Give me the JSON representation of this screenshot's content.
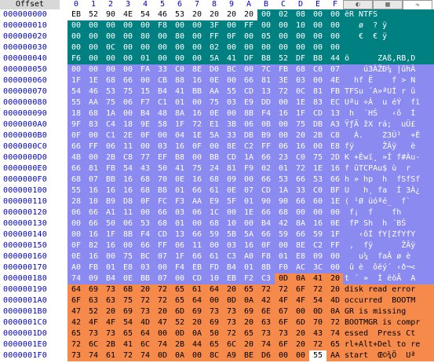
{
  "header": {
    "offset_label": "Offset",
    "columns": [
      "0",
      "1",
      "2",
      "3",
      "4",
      "5",
      "6",
      "7",
      "8",
      "9",
      "A",
      "B",
      "C",
      "D",
      "E",
      "F"
    ]
  },
  "tabs": [
    {
      "icon": "swirl-icon"
    },
    {
      "icon": "page-icon"
    },
    {
      "icon": "arrow-icon"
    }
  ],
  "colors": {
    "teal": "#008080",
    "blue": "#8a8af0",
    "orange": "#f58a4b"
  },
  "rows": [
    {
      "offset": "000000000",
      "hex": [
        "EB",
        "52",
        "90",
        "4E",
        "54",
        "46",
        "53",
        "20",
        "20",
        "20",
        "20",
        "00",
        "02",
        "08",
        "00",
        "00"
      ],
      "ascii": "ëR NTFS",
      "color": "teal"
    },
    {
      "offset": "000000010",
      "hex": [
        "00",
        "00",
        "00",
        "00",
        "00",
        "F8",
        "00",
        "00",
        "3F",
        "00",
        "FF",
        "00",
        "00",
        "10",
        "00",
        "00"
      ],
      "ascii": "   ø  ? ÿ",
      "color": "teal"
    },
    {
      "offset": "000000020",
      "hex": [
        "00",
        "00",
        "00",
        "00",
        "80",
        "00",
        "80",
        "00",
        "FF",
        "0F",
        "00",
        "05",
        "00",
        "00",
        "00",
        "00"
      ],
      "ascii": "   €  € ÿ",
      "color": "teal"
    },
    {
      "offset": "000000030",
      "hex": [
        "00",
        "00",
        "0C",
        "00",
        "00",
        "00",
        "00",
        "00",
        "02",
        "00",
        "00",
        "00",
        "00",
        "00",
        "00",
        "00"
      ],
      "ascii": "",
      "color": "teal"
    },
    {
      "offset": "000000040",
      "hex": [
        "F6",
        "00",
        "00",
        "00",
        "01",
        "00",
        "00",
        "00",
        "5A",
        "41",
        "DF",
        "B8",
        "52",
        "DF",
        "B8",
        "44"
      ],
      "ascii": "ö      ZAß,RB,D",
      "color": "teal"
    },
    {
      "offset": "000000050",
      "hex": [
        "00",
        "00",
        "00",
        "00",
        "FA",
        "33",
        "C0",
        "8E",
        "D0",
        "BC",
        "00",
        "7C",
        "FB",
        "68",
        "C0",
        "07"
      ],
      "ascii": "    ú3ÀŽÐ¼ |ûhÀ",
      "color": "blue"
    },
    {
      "offset": "000000060",
      "hex": [
        "1F",
        "1E",
        "68",
        "66",
        "00",
        "CB",
        "88",
        "16",
        "0E",
        "00",
        "66",
        "81",
        "3E",
        "03",
        "00",
        "4E"
      ],
      "ascii": "  hf Ë    f > N",
      "color": "blue"
    },
    {
      "offset": "000000070",
      "hex": [
        "54",
        "46",
        "53",
        "75",
        "15",
        "B4",
        "41",
        "BB",
        "AA",
        "55",
        "CD",
        "13",
        "72",
        "0C",
        "81",
        "FB"
      ],
      "ascii": "TFSu ´A»ªUÍ r û",
      "color": "blue"
    },
    {
      "offset": "000000080",
      "hex": [
        "55",
        "AA",
        "75",
        "06",
        "F7",
        "C1",
        "01",
        "00",
        "75",
        "03",
        "E9",
        "DD",
        "00",
        "1E",
        "83",
        "EC"
      ],
      "ascii": "Uªu ÷Á  u éÝ  fì",
      "color": "blue"
    },
    {
      "offset": "000000090",
      "hex": [
        "18",
        "68",
        "1A",
        "00",
        "B4",
        "48",
        "8A",
        "16",
        "0E",
        "00",
        "8B",
        "F4",
        "16",
        "1F",
        "CD",
        "13"
      ],
      "ascii": " h  ´HŠ   ‹ô  Í",
      "color": "blue"
    },
    {
      "offset": "0000000A0",
      "hex": [
        "9F",
        "83",
        "C4",
        "18",
        "9E",
        "58",
        "1F",
        "72",
        "E1",
        "3B",
        "06",
        "0B",
        "00",
        "75",
        "DB",
        "A3"
      ],
      "ascii": "ŸƒÄ žX rá;  uÛ£",
      "color": "blue"
    },
    {
      "offset": "0000000B0",
      "hex": [
        "0F",
        "00",
        "C1",
        "2E",
        "0F",
        "00",
        "04",
        "1E",
        "5A",
        "33",
        "DB",
        "B9",
        "00",
        "20",
        "2B",
        "C8"
      ],
      "ascii": "  Á.    Z3Û¹  +È",
      "color": "blue"
    },
    {
      "offset": "0000000C0",
      "hex": [
        "66",
        "FF",
        "06",
        "11",
        "00",
        "03",
        "16",
        "0F",
        "00",
        "8E",
        "C2",
        "FF",
        "06",
        "16",
        "00",
        "E8"
      ],
      "ascii": "fÿ      ŽÂÿ   è",
      "color": "blue"
    },
    {
      "offset": "0000000D0",
      "hex": [
        "4B",
        "00",
        "2B",
        "C8",
        "77",
        "EF",
        "B8",
        "00",
        "BB",
        "CD",
        "1A",
        "66",
        "23",
        "C0",
        "75",
        "2D"
      ],
      "ascii": "K +Èwï¸ »Í f#Àu-",
      "color": "blue"
    },
    {
      "offset": "0000000E0",
      "hex": [
        "66",
        "81",
        "FB",
        "54",
        "43",
        "50",
        "41",
        "75",
        "24",
        "81",
        "F9",
        "02",
        "01",
        "72",
        "1E",
        "16"
      ],
      "ascii": "f ûTCPAu$ ù  r",
      "color": "blue"
    },
    {
      "offset": "0000000F0",
      "hex": [
        "68",
        "07",
        "BB",
        "16",
        "68",
        "70",
        "0E",
        "16",
        "68",
        "09",
        "00",
        "66",
        "53",
        "66",
        "53",
        "66"
      ],
      "ascii": "h » hp  h  fSfSf",
      "color": "blue"
    },
    {
      "offset": "000000100",
      "hex": [
        "55",
        "16",
        "16",
        "16",
        "68",
        "B8",
        "01",
        "66",
        "61",
        "0E",
        "07",
        "CD",
        "1A",
        "33",
        "C0",
        "BF"
      ],
      "ascii": "U   h¸ fa  Í 3À¿",
      "color": "blue"
    },
    {
      "offset": "000000110",
      "hex": [
        "28",
        "10",
        "B9",
        "D8",
        "0F",
        "FC",
        "F3",
        "AA",
        "E9",
        "5F",
        "01",
        "90",
        "90",
        "66",
        "60",
        "1E"
      ],
      "ascii": "( ¹Ø üóªé_  f`",
      "color": "blue"
    },
    {
      "offset": "000000120",
      "hex": [
        "06",
        "66",
        "A1",
        "11",
        "00",
        "66",
        "03",
        "06",
        "1C",
        "00",
        "1E",
        "66",
        "68",
        "00",
        "00",
        "00"
      ],
      "ascii": " f¡  f    fh",
      "color": "blue"
    },
    {
      "offset": "000000130",
      "hex": [
        "00",
        "66",
        "50",
        "06",
        "53",
        "68",
        "01",
        "00",
        "68",
        "10",
        "00",
        "B4",
        "42",
        "8A",
        "16",
        "0E"
      ],
      "ascii": " fP Sh  h ´BŠ",
      "color": "blue"
    },
    {
      "offset": "000000140",
      "hex": [
        "00",
        "16",
        "1F",
        "8B",
        "F4",
        "CD",
        "13",
        "66",
        "59",
        "5B",
        "5A",
        "66",
        "59",
        "66",
        "59",
        "1F"
      ],
      "ascii": "   ‹ôÍ fY[ZfYfY",
      "color": "blue"
    },
    {
      "offset": "000000150",
      "hex": [
        "0F",
        "82",
        "16",
        "00",
        "66",
        "FF",
        "06",
        "11",
        "00",
        "03",
        "16",
        "0F",
        "00",
        "8E",
        "C2",
        "FF"
      ],
      "ascii": " ‚  fÿ      ŽÂÿ",
      "color": "blue"
    },
    {
      "offset": "000000160",
      "hex": [
        "0E",
        "16",
        "00",
        "75",
        "BC",
        "07",
        "1F",
        "66",
        "61",
        "C3",
        "A0",
        "F8",
        "01",
        "E8",
        "09",
        "00"
      ],
      "ascii": "   u¼  faÃ ø è",
      "color": "blue"
    },
    {
      "offset": "000000170",
      "hex": [
        "A0",
        "FB",
        "01",
        "E8",
        "03",
        "00",
        "F4",
        "EB",
        "FD",
        "B4",
        "01",
        "8B",
        "F0",
        "AC",
        "3C",
        "00"
      ],
      "ascii": " û è  ôëý´ ‹ð¬<",
      "color": "blue"
    },
    {
      "offset": "000000180",
      "hex": [
        "74",
        "09",
        "B4",
        "0E",
        "BB",
        "07",
        "00",
        "CD",
        "10",
        "EB",
        "F2",
        "C3",
        "0D",
        "0A",
        "41",
        "20"
      ],
      "ascii": "t ´ »  Í ëòÃ  A",
      "color": "blue"
    },
    {
      "offset": "000000190",
      "hex": [
        "64",
        "69",
        "73",
        "6B",
        "20",
        "72",
        "65",
        "61",
        "64",
        "20",
        "65",
        "72",
        "72",
        "6F",
        "72",
        "20"
      ],
      "ascii": "disk read error",
      "color": "orange"
    },
    {
      "offset": "0000001A0",
      "hex": [
        "6F",
        "63",
        "63",
        "75",
        "72",
        "72",
        "65",
        "64",
        "00",
        "0D",
        "0A",
        "42",
        "4F",
        "4F",
        "54",
        "4D"
      ],
      "ascii": "occurred  BOOTM",
      "color": "orange"
    },
    {
      "offset": "0000001B0",
      "hex": [
        "47",
        "52",
        "20",
        "69",
        "73",
        "20",
        "6D",
        "69",
        "73",
        "73",
        "69",
        "6E",
        "67",
        "00",
        "0D",
        "0A"
      ],
      "ascii": "GR is missing",
      "color": "orange"
    },
    {
      "offset": "0000001C0",
      "hex": [
        "42",
        "4F",
        "4F",
        "54",
        "4D",
        "47",
        "52",
        "20",
        "69",
        "73",
        "20",
        "63",
        "6F",
        "6D",
        "70",
        "72"
      ],
      "ascii": "BOOTMGR is compr",
      "color": "orange"
    },
    {
      "offset": "0000001D0",
      "hex": [
        "65",
        "73",
        "73",
        "65",
        "64",
        "00",
        "0D",
        "0A",
        "50",
        "72",
        "65",
        "73",
        "73",
        "20",
        "43",
        "74"
      ],
      "ascii": "essed  Press Ct",
      "color": "orange"
    },
    {
      "offset": "0000001E0",
      "hex": [
        "72",
        "6C",
        "2B",
        "41",
        "6C",
        "74",
        "2B",
        "44",
        "65",
        "6C",
        "20",
        "74",
        "6F",
        "20",
        "72",
        "65"
      ],
      "ascii": "rl+Alt+Del to re",
      "color": "orange"
    },
    {
      "offset": "0000001F0",
      "hex": [
        "73",
        "74",
        "61",
        "72",
        "74",
        "0D",
        "0A",
        "00",
        "8C",
        "A9",
        "BE",
        "D6",
        "00",
        "00",
        "55",
        "AA"
      ],
      "ascii": "start  Œ©¾Ö  Uª",
      "color": "orange"
    }
  ]
}
